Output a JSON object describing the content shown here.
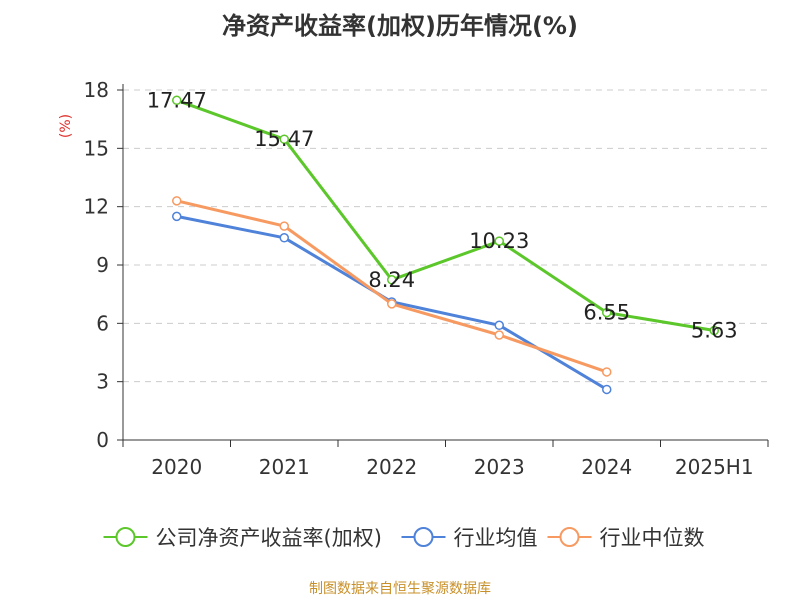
{
  "chart_data": {
    "type": "line",
    "title": "净资产收益率(加权)历年情况(%)",
    "ylabel": "(%)",
    "xlabel": "",
    "categories": [
      "2020",
      "2021",
      "2022",
      "2023",
      "2024",
      "2025H1"
    ],
    "ylim": [
      0,
      18
    ],
    "yticks": [
      0,
      3,
      6,
      9,
      12,
      15,
      18
    ],
    "grid": true,
    "legend_position": "bottom",
    "series": [
      {
        "name": "公司净资产收益率(加权)",
        "color": "#5cc72a",
        "values": [
          17.47,
          15.47,
          8.24,
          10.23,
          6.55,
          5.63
        ],
        "show_labels": true
      },
      {
        "name": "行业均值",
        "color": "#4f82d9",
        "values": [
          11.5,
          10.4,
          7.1,
          5.9,
          2.6,
          null
        ],
        "show_labels": false
      },
      {
        "name": "行业中位数",
        "color": "#f79a61",
        "values": [
          12.3,
          11.0,
          7.0,
          5.4,
          3.5,
          null
        ],
        "show_labels": false
      }
    ]
  },
  "source_text": "制图数据来自恒生聚源数据库"
}
